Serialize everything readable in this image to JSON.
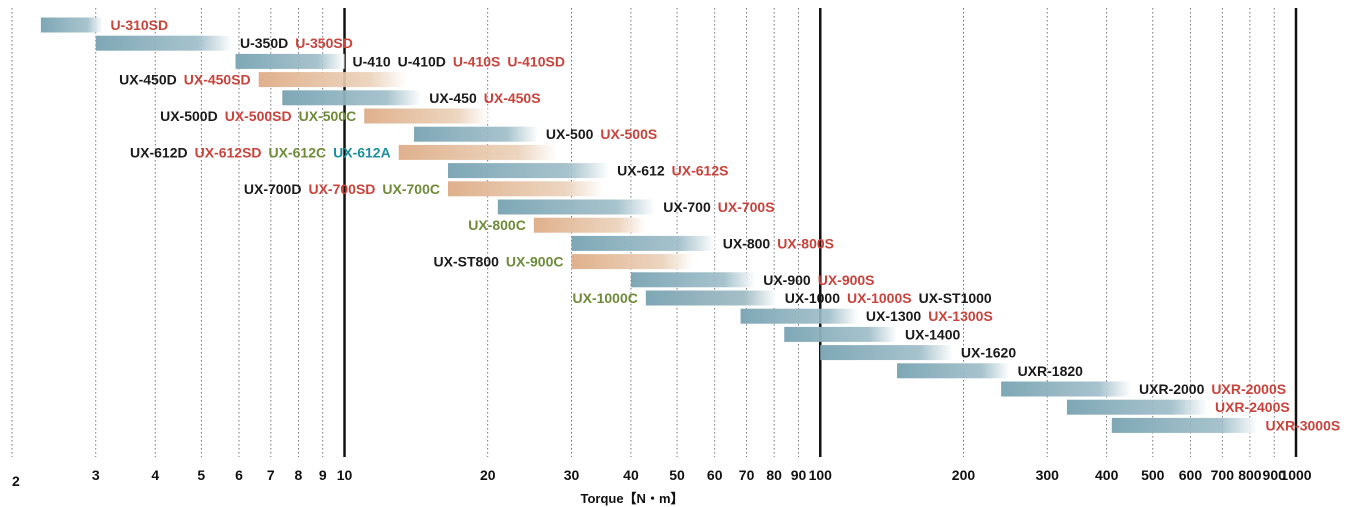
{
  "chart_data": {
    "type": "range-bar",
    "title": "",
    "xlabel": "Torque【N・m】",
    "ylabel": "",
    "x_scale": "log",
    "xlim": [
      2,
      1000
    ],
    "grid": true,
    "x_ticks": [
      {
        "value": 2,
        "label": "2"
      },
      {
        "value": 3,
        "label": "3"
      },
      {
        "value": 4,
        "label": "4"
      },
      {
        "value": 5,
        "label": "5"
      },
      {
        "value": 6,
        "label": "6"
      },
      {
        "value": 7,
        "label": "7"
      },
      {
        "value": 8,
        "label": "8"
      },
      {
        "value": 9,
        "label": "9"
      },
      {
        "value": 10,
        "label": "10"
      },
      {
        "value": 20,
        "label": "20"
      },
      {
        "value": 30,
        "label": "30"
      },
      {
        "value": 40,
        "label": "40"
      },
      {
        "value": 50,
        "label": "50"
      },
      {
        "value": 60,
        "label": "60"
      },
      {
        "value": 70,
        "label": "70"
      },
      {
        "value": 80,
        "label": "80"
      },
      {
        "value": 90,
        "label": "90"
      },
      {
        "value": 100,
        "label": "100"
      },
      {
        "value": 200,
        "label": "200"
      },
      {
        "value": 300,
        "label": "300"
      },
      {
        "value": 400,
        "label": "400"
      },
      {
        "value": 500,
        "label": "500"
      },
      {
        "value": 600,
        "label": "600"
      },
      {
        "value": 700,
        "label": "700"
      },
      {
        "value": 800,
        "label": "800"
      },
      {
        "value": 900,
        "label": "900"
      },
      {
        "value": 1000,
        "label": "1000"
      }
    ],
    "major_gridlines": [
      10,
      100,
      1000
    ],
    "series_colors": {
      "standard": "#7ea7b5",
      "clutch": "#dfb08c"
    },
    "label_colors": {
      "black": "#1a1a1a",
      "red": "#c8433c",
      "green": "#6f8b3a",
      "teal": "#1f8e9f"
    },
    "rows": [
      {
        "bars": [
          {
            "from": 2.3,
            "to": 3.1,
            "kind": "standard"
          }
        ],
        "label_side": "right",
        "labels": [
          {
            "text": "U-310SD",
            "color": "red"
          }
        ]
      },
      {
        "bars": [
          {
            "from": 3.0,
            "to": 5.8,
            "kind": "standard"
          }
        ],
        "label_side": "right",
        "labels": [
          {
            "text": "U-350D",
            "color": "black"
          },
          {
            "text": "U-350SD",
            "color": "red"
          }
        ]
      },
      {
        "bars": [
          {
            "from": 5.9,
            "to": 10.0,
            "kind": "standard"
          }
        ],
        "label_side": "right",
        "labels": [
          {
            "text": "U-410",
            "color": "black"
          },
          {
            "text": "U-410D",
            "color": "black"
          },
          {
            "text": "U-410S",
            "color": "red"
          },
          {
            "text": "U-410SD",
            "color": "red"
          }
        ]
      },
      {
        "bars": [
          {
            "from": 6.6,
            "to": 13.5,
            "kind": "clutch"
          }
        ],
        "label_side": "left",
        "labels": [
          {
            "text": "UX-450D",
            "color": "black"
          },
          {
            "text": "UX-450SD",
            "color": "red"
          }
        ]
      },
      {
        "bars": [
          {
            "from": 7.4,
            "to": 14.5,
            "kind": "standard"
          }
        ],
        "label_side": "right",
        "labels": [
          {
            "text": "UX-450",
            "color": "black"
          },
          {
            "text": "UX-450S",
            "color": "red"
          }
        ]
      },
      {
        "bars": [
          {
            "from": 11.0,
            "to": 20.0,
            "kind": "clutch"
          }
        ],
        "label_side": "left",
        "labels": [
          {
            "text": "UX-500D",
            "color": "black"
          },
          {
            "text": "UX-500SD",
            "color": "red"
          },
          {
            "text": "UX-500C",
            "color": "green"
          }
        ]
      },
      {
        "bars": [
          {
            "from": 14.0,
            "to": 25.5,
            "kind": "standard"
          }
        ],
        "label_side": "right",
        "labels": [
          {
            "text": "UX-500",
            "color": "black"
          },
          {
            "text": "UX-500S",
            "color": "red"
          }
        ]
      },
      {
        "bars": [
          {
            "from": 13.0,
            "to": 28.0,
            "kind": "clutch"
          }
        ],
        "label_side": "left",
        "labels": [
          {
            "text": "UX-612D",
            "color": "black"
          },
          {
            "text": "UX-612SD",
            "color": "red"
          },
          {
            "text": "UX-612C",
            "color": "green"
          },
          {
            "text": "UX-612A",
            "color": "teal"
          }
        ]
      },
      {
        "bars": [
          {
            "from": 16.5,
            "to": 36.0,
            "kind": "standard"
          }
        ],
        "label_side": "right",
        "labels": [
          {
            "text": "UX-612",
            "color": "black"
          },
          {
            "text": "UX-612S",
            "color": "red"
          }
        ]
      },
      {
        "bars": [
          {
            "from": 16.5,
            "to": 35.0,
            "kind": "clutch"
          }
        ],
        "label_side": "left",
        "labels": [
          {
            "text": "UX-700D",
            "color": "black"
          },
          {
            "text": "UX-700SD",
            "color": "red"
          },
          {
            "text": "UX-700C",
            "color": "green"
          }
        ]
      },
      {
        "bars": [
          {
            "from": 21.0,
            "to": 45.0,
            "kind": "standard"
          }
        ],
        "label_side": "right",
        "labels": [
          {
            "text": "UX-700",
            "color": "black"
          },
          {
            "text": "UX-700S",
            "color": "red"
          }
        ]
      },
      {
        "bars": [
          {
            "from": 25.0,
            "to": 43.0,
            "kind": "clutch"
          }
        ],
        "label_side": "left",
        "labels": [
          {
            "text": "UX-800C",
            "color": "green"
          }
        ]
      },
      {
        "bars": [
          {
            "from": 30.0,
            "to": 60.0,
            "kind": "standard"
          }
        ],
        "label_side": "right",
        "labels": [
          {
            "text": "UX-800",
            "color": "black"
          },
          {
            "text": "UX-800S",
            "color": "red"
          }
        ]
      },
      {
        "bars": [
          {
            "from": 30.0,
            "to": 54.0,
            "kind": "clutch"
          }
        ],
        "label_side": "left",
        "labels": [
          {
            "text": "UX-ST800",
            "color": "black"
          },
          {
            "text": "UX-900C",
            "color": "green"
          }
        ]
      },
      {
        "bars": [
          {
            "from": 40.0,
            "to": 73.0,
            "kind": "standard"
          }
        ],
        "label_side": "right",
        "labels": [
          {
            "text": "UX-900",
            "color": "black"
          },
          {
            "text": "UX-900S",
            "color": "red"
          }
        ]
      },
      {
        "bars": [
          {
            "from": 43.0,
            "to": 81.0,
            "kind": "clutch"
          },
          {
            "from": 43.0,
            "to": 81.0,
            "kind": "standard"
          }
        ],
        "label_side": "both",
        "left_labels": [
          {
            "text": "UX-1000C",
            "color": "green"
          }
        ],
        "labels": [
          {
            "text": "UX-1000",
            "color": "black"
          },
          {
            "text": "UX-1000S",
            "color": "red"
          },
          {
            "text": "UX-ST1000",
            "color": "black"
          }
        ]
      },
      {
        "bars": [
          {
            "from": 68.0,
            "to": 120.0,
            "kind": "standard"
          }
        ],
        "label_side": "right",
        "labels": [
          {
            "text": "UX-1300",
            "color": "black"
          },
          {
            "text": "UX-1300S",
            "color": "red"
          }
        ]
      },
      {
        "bars": [
          {
            "from": 84.0,
            "to": 145.0,
            "kind": "standard"
          }
        ],
        "label_side": "right",
        "labels": [
          {
            "text": "UX-1400",
            "color": "black"
          }
        ]
      },
      {
        "bars": [
          {
            "from": 100.0,
            "to": 190.0,
            "kind": "standard"
          }
        ],
        "label_side": "right",
        "labels": [
          {
            "text": "UX-1620",
            "color": "black"
          }
        ]
      },
      {
        "bars": [
          {
            "from": 145.0,
            "to": 250.0,
            "kind": "standard"
          }
        ],
        "label_side": "right",
        "labels": [
          {
            "text": "UXR-1820",
            "color": "black"
          }
        ]
      },
      {
        "bars": [
          {
            "from": 240.0,
            "to": 450.0,
            "kind": "standard"
          }
        ],
        "label_side": "right",
        "labels": [
          {
            "text": "UXR-2000",
            "color": "black"
          },
          {
            "text": "UXR-2000S",
            "color": "red"
          }
        ]
      },
      {
        "bars": [
          {
            "from": 330.0,
            "to": 650.0,
            "kind": "standard"
          }
        ],
        "label_side": "right",
        "labels": [
          {
            "text": "UXR-2400S",
            "color": "red"
          }
        ]
      },
      {
        "bars": [
          {
            "from": 410.0,
            "to": 830.0,
            "kind": "standard"
          }
        ],
        "label_side": "right",
        "labels": [
          {
            "text": "UXR-3000S",
            "color": "red"
          }
        ]
      }
    ]
  }
}
